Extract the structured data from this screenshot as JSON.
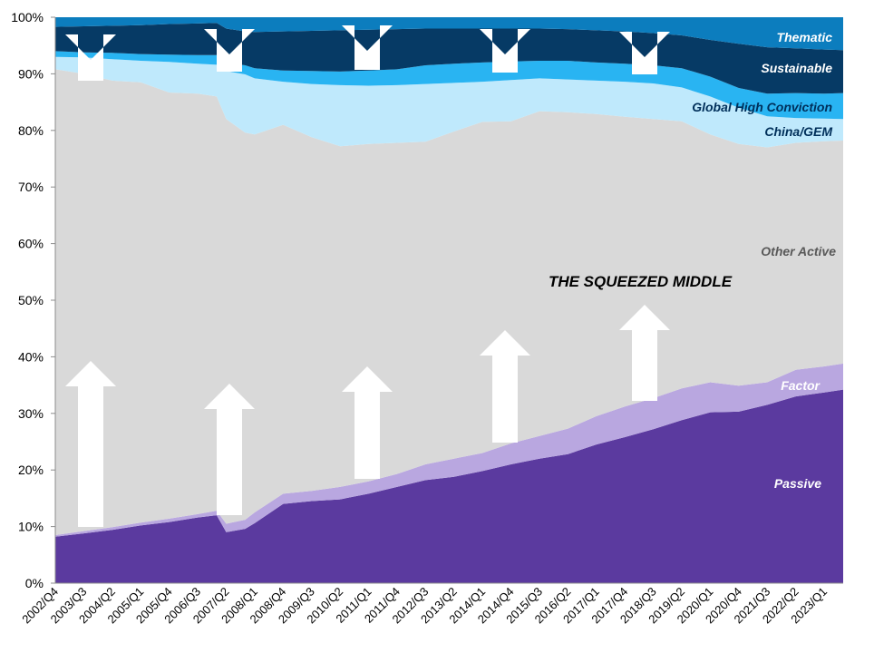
{
  "chart_data": {
    "type": "area",
    "stacked": true,
    "title": "",
    "xlabel": "",
    "ylabel": "",
    "ylim": [
      0,
      100
    ],
    "y_format": "percent",
    "grid": false,
    "legend": "inline labels",
    "annotation": "THE SQUEEZED MIDDLE",
    "arrows": "white arrows pointing down from the top and up from the bottom toward the middle",
    "y_ticks": [
      "0%",
      "10%",
      "20%",
      "30%",
      "40%",
      "50%",
      "60%",
      "70%",
      "80%",
      "90%",
      "100%"
    ],
    "x_tick_labels": [
      "2002/Q4",
      "2003/Q3",
      "2004/Q2",
      "2005/Q1",
      "2005/Q4",
      "2006/Q3",
      "2007/Q2",
      "2008/Q1",
      "2008/Q4",
      "2009/Q3",
      "2010/Q2",
      "2011/Q1",
      "2011/Q4",
      "2012/Q3",
      "2013/Q2",
      "2014/Q1",
      "2014/Q4",
      "2015/Q3",
      "2016/Q2",
      "2017/Q1",
      "2017/Q4",
      "2018/Q3",
      "2019/Q2",
      "2020/Q1",
      "2020/Q4",
      "2021/Q3",
      "2022/Q2",
      "2023/Q1"
    ],
    "x_sample": [
      "2002/Q4",
      "2003/Q3",
      "2004/Q2",
      "2005/Q1",
      "2005/Q4",
      "2006/Q3",
      "2007/Q1",
      "2007/Q2",
      "2007/Q4",
      "2008/Q1",
      "2008/Q4",
      "2009/Q3",
      "2010/Q2",
      "2011/Q1",
      "2011/Q4",
      "2012/Q3",
      "2013/Q2",
      "2014/Q1",
      "2014/Q4",
      "2015/Q3",
      "2016/Q2",
      "2017/Q1",
      "2017/Q4",
      "2018/Q3",
      "2019/Q2",
      "2020/Q1",
      "2020/Q4",
      "2021/Q3",
      "2022/Q2",
      "2023/Q1",
      "2023/Q3"
    ],
    "series": [
      {
        "name": "Passive",
        "color": "#5b3a9f",
        "label_color": "#ffffff",
        "cumulative": [
          8.2,
          8.8,
          9.4,
          10.2,
          10.8,
          11.6,
          12.0,
          9.0,
          9.6,
          10.6,
          14.0,
          14.5,
          14.8,
          15.8,
          17.0,
          18.2,
          18.8,
          19.8,
          21.0,
          22.0,
          22.8,
          24.5,
          25.8,
          27.2,
          28.8,
          30.2,
          30.3,
          31.5,
          33.0,
          33.7,
          34.2
        ]
      },
      {
        "name": "Factor",
        "color": "#b9a7e0",
        "label_color": "#ffffff",
        "cumulative": [
          8.5,
          9.2,
          9.9,
          10.7,
          11.4,
          12.2,
          12.8,
          10.5,
          11.2,
          12.5,
          15.8,
          16.3,
          17.0,
          18.0,
          19.3,
          21.0,
          22.0,
          23.0,
          24.7,
          26.0,
          27.3,
          29.5,
          31.2,
          32.7,
          34.4,
          35.5,
          34.9,
          35.5,
          37.7,
          38.3,
          38.8
        ]
      },
      {
        "name": "Other Active",
        "color": "#d9d9d9",
        "label_color": "#595959",
        "cumulative": [
          90.8,
          90.0,
          88.8,
          88.5,
          86.7,
          86.5,
          86.0,
          82.0,
          79.6,
          79.3,
          81.0,
          78.8,
          77.2,
          77.6,
          77.8,
          78.0,
          79.8,
          81.5,
          81.6,
          83.4,
          83.2,
          82.9,
          82.4,
          82.0,
          81.6,
          79.3,
          77.6,
          77.0,
          77.8,
          78.1,
          78.2
        ]
      },
      {
        "name": "China/GEM",
        "color": "#bfe9fc",
        "label_color": "#002f5a",
        "cumulative": [
          93.0,
          92.9,
          92.6,
          92.3,
          92.1,
          91.8,
          91.6,
          90.5,
          89.9,
          89.2,
          88.6,
          88.2,
          88.0,
          87.9,
          88.0,
          88.2,
          88.4,
          88.6,
          88.9,
          89.2,
          89.0,
          88.8,
          88.6,
          88.3,
          87.6,
          86.0,
          84.0,
          82.5,
          82.2,
          82.1,
          82.0
        ]
      },
      {
        "name": "Global High Conviction",
        "color": "#29b4f2",
        "label_color": "#002f5a",
        "cumulative": [
          94.0,
          93.8,
          93.7,
          93.5,
          93.4,
          93.3,
          93.3,
          92.0,
          91.5,
          91.0,
          90.6,
          90.5,
          90.4,
          90.6,
          90.8,
          91.5,
          91.8,
          92.0,
          92.2,
          92.3,
          92.3,
          92.0,
          91.8,
          91.5,
          91.0,
          89.5,
          87.5,
          86.5,
          86.6,
          86.5,
          86.6
        ]
      },
      {
        "name": "Sustainable",
        "color": "#063a65",
        "label_color": "#ffffff",
        "cumulative": [
          98.3,
          98.4,
          98.5,
          98.6,
          98.8,
          98.9,
          99.0,
          98.0,
          97.5,
          97.4,
          97.5,
          97.6,
          97.7,
          97.8,
          97.9,
          98.0,
          98.0,
          98.0,
          98.0,
          98.0,
          97.9,
          97.7,
          97.5,
          97.2,
          96.8,
          96.0,
          95.3,
          94.7,
          94.5,
          94.3,
          94.2
        ]
      },
      {
        "name": "Thematic",
        "color": "#0c7dbe",
        "label_color": "#ffffff",
        "cumulative": [
          100,
          100,
          100,
          100,
          100,
          100,
          100,
          100,
          100,
          100,
          100,
          100,
          100,
          100,
          100,
          100,
          100,
          100,
          100,
          100,
          100,
          100,
          100,
          100,
          100,
          100,
          100,
          100,
          100,
          100,
          100
        ]
      }
    ]
  }
}
